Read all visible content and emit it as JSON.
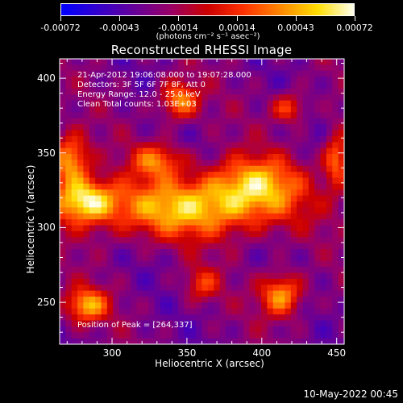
{
  "colorbar": {
    "ticks": [
      "-0.00072",
      "-0.00043",
      "-0.00014",
      "0.00014",
      "0.00043",
      "0.00072"
    ],
    "units": "(photons cm⁻² s⁻¹ asec⁻²)",
    "colormap": [
      "#0000ff",
      "#3300cc",
      "#660099",
      "#990066",
      "#cc0000",
      "#ff3300",
      "#ff8800",
      "#ffdd00",
      "#ffffee"
    ]
  },
  "chart_data": {
    "type": "heatmap",
    "title": "Reconstructed RHESSI Image",
    "xlabel": "Heliocentric X (arcsec)",
    "ylabel": "Heliocentric Y (arcsec)",
    "xlim": [
      265,
      455
    ],
    "ylim": [
      222,
      413
    ],
    "xticks": [
      300,
      350,
      400,
      450
    ],
    "yticks": [
      250,
      300,
      350,
      400
    ],
    "zlim": [
      -0.00072,
      0.00072
    ],
    "peak": [
      264,
      337
    ],
    "annotations": [
      "21-Apr-2012 19:06:08.000 to 19:07:28.000",
      "Detectors: 3F 5F 6F 7F 8F, Att 0",
      "Energy Range: 12.0 - 25.0 keV",
      "Clean    Total counts: 1.03E+03"
    ],
    "peak_label": "Position of Peak = [264,337]",
    "sources": [
      {
        "x": 350,
        "y": 313,
        "sx": 45,
        "sy": 14,
        "amp": 0.00075
      },
      {
        "x": 395,
        "y": 330,
        "sx": 22,
        "sy": 13,
        "amp": 0.00065
      },
      {
        "x": 345,
        "y": 385,
        "sx": 9,
        "sy": 9,
        "amp": 0.00068
      },
      {
        "x": 282,
        "y": 318,
        "sx": 14,
        "sy": 10,
        "amp": 0.0008
      },
      {
        "x": 272,
        "y": 345,
        "sx": 9,
        "sy": 12,
        "amp": 0.00075
      },
      {
        "x": 330,
        "y": 345,
        "sx": 12,
        "sy": 8,
        "amp": 0.00055
      },
      {
        "x": 413,
        "y": 255,
        "sx": 10,
        "sy": 10,
        "amp": 0.00072
      },
      {
        "x": 283,
        "y": 248,
        "sx": 10,
        "sy": 8,
        "amp": 0.0007
      },
      {
        "x": 450,
        "y": 345,
        "sx": 6,
        "sy": 14,
        "amp": 0.0006
      },
      {
        "x": 418,
        "y": 380,
        "sx": 8,
        "sy": 7,
        "amp": 0.0005
      },
      {
        "x": 360,
        "y": 262,
        "sx": 8,
        "sy": 8,
        "amp": 0.0004
      }
    ],
    "background": -0.00028
  },
  "footer": {
    "timestamp": "10-May-2022 00:45"
  }
}
